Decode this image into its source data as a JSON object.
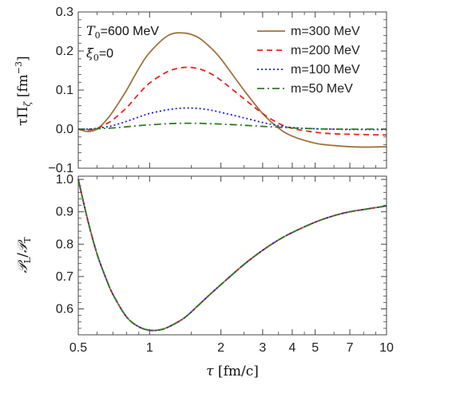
{
  "chart_data": [
    {
      "type": "line",
      "panel": "top",
      "title": "",
      "ylabel": "τΠ_ζ [fm^-3]",
      "ylabel_parts": {
        "main": "τΠ",
        "sub": "ζ",
        "unit_open": " [fm",
        "sup": "−3",
        "unit_close": "]"
      },
      "xscale": "log",
      "xlim": [
        0.5,
        10
      ],
      "ylim": [
        -0.1,
        0.3
      ],
      "yticks": [
        -0.1,
        0.0,
        0.1,
        0.2,
        0.3
      ],
      "ytick_labels": [
        "−0.1",
        "0.0",
        "0.1",
        "0.2",
        "0.3"
      ],
      "annotations": [
        {
          "main": "T",
          "sub": "0",
          "rest": "=600 MeV"
        },
        {
          "main": "ξ",
          "sub": "0",
          "rest": "=0"
        }
      ],
      "legend_position": "top-right",
      "series": [
        {
          "name": "m=300 MeV",
          "color": "#a0723e",
          "dash": "solid",
          "x": [
            0.5,
            0.55,
            0.6,
            0.65,
            0.7,
            0.8,
            0.9,
            1.0,
            1.2,
            1.4,
            1.6,
            1.8,
            2.0,
            2.5,
            3.0,
            3.5,
            4.0,
            5.0,
            6.0,
            7.0,
            8.0,
            10.0
          ],
          "y": [
            0.0,
            -0.006,
            0.0,
            0.02,
            0.045,
            0.1,
            0.155,
            0.196,
            0.24,
            0.246,
            0.235,
            0.21,
            0.18,
            0.1,
            0.04,
            0.003,
            -0.018,
            -0.036,
            -0.042,
            -0.045,
            -0.046,
            -0.045
          ]
        },
        {
          "name": "m=200 MeV",
          "color": "#e8231f",
          "dash": "7,5",
          "x": [
            0.5,
            0.55,
            0.6,
            0.65,
            0.7,
            0.8,
            0.9,
            1.0,
            1.2,
            1.4,
            1.6,
            1.8,
            2.0,
            2.5,
            3.0,
            3.5,
            4.0,
            5.0,
            6.0,
            7.0,
            8.0,
            10.0
          ],
          "y": [
            0.0,
            -0.002,
            0.002,
            0.012,
            0.024,
            0.055,
            0.09,
            0.118,
            0.148,
            0.158,
            0.155,
            0.143,
            0.125,
            0.078,
            0.04,
            0.015,
            0.002,
            -0.008,
            -0.012,
            -0.013,
            -0.014,
            -0.015
          ]
        },
        {
          "name": "m=100 MeV",
          "color": "#1a1aee",
          "dash": "2,3",
          "x": [
            0.5,
            0.55,
            0.6,
            0.65,
            0.7,
            0.8,
            0.9,
            1.0,
            1.2,
            1.4,
            1.6,
            1.8,
            2.0,
            2.5,
            3.0,
            3.5,
            4.0,
            5.0,
            6.0,
            7.0,
            8.0,
            10.0
          ],
          "y": [
            0.0,
            0.0,
            0.002,
            0.005,
            0.009,
            0.02,
            0.031,
            0.04,
            0.05,
            0.054,
            0.053,
            0.049,
            0.043,
            0.029,
            0.017,
            0.009,
            0.004,
            0.001,
            0.0,
            -0.001,
            -0.001,
            -0.001
          ]
        },
        {
          "name": "m=50 MeV",
          "color": "#2e7d1f",
          "dash": "9,4,2,4",
          "x": [
            0.5,
            0.55,
            0.6,
            0.65,
            0.7,
            0.8,
            0.9,
            1.0,
            1.2,
            1.4,
            1.6,
            1.8,
            2.0,
            2.5,
            3.0,
            3.5,
            4.0,
            5.0,
            6.0,
            7.0,
            8.0,
            10.0
          ],
          "y": [
            0.0,
            0.0,
            0.001,
            0.002,
            0.003,
            0.006,
            0.009,
            0.011,
            0.014,
            0.015,
            0.015,
            0.014,
            0.013,
            0.01,
            0.007,
            0.005,
            0.003,
            0.001,
            0.0,
            0.0,
            0.0,
            0.0
          ]
        }
      ]
    },
    {
      "type": "line",
      "panel": "bottom",
      "title": "",
      "xlabel": "τ [fm/c]",
      "ylabel": "P_L/P_T",
      "ylabel_parts": {
        "a": "𝒫",
        "a_sub": "L",
        "slash": "/",
        "b": "𝒫",
        "b_sub": "T"
      },
      "xscale": "log",
      "xlim": [
        0.5,
        10
      ],
      "xticks": [
        0.5,
        1,
        2,
        3,
        4,
        5,
        7,
        10
      ],
      "xtick_labels": [
        "0.5",
        "1",
        "2",
        "3",
        "4",
        "5",
        "7",
        "10"
      ],
      "ylim": [
        0.52,
        1.01
      ],
      "yticks": [
        0.6,
        0.7,
        0.8,
        0.9,
        1.0
      ],
      "ytick_labels": [
        "0.6",
        "0.7",
        "0.8",
        "0.9",
        "1.0"
      ],
      "series": [
        {
          "name": "m=300 MeV",
          "color": "#a0723e",
          "dash": "solid",
          "x": [
            0.5,
            0.55,
            0.6,
            0.65,
            0.7,
            0.8,
            0.9,
            1.0,
            1.1,
            1.2,
            1.4,
            1.6,
            1.8,
            2.0,
            2.5,
            3.0,
            3.5,
            4.0,
            5.0,
            6.0,
            7.0,
            8.0,
            10.0
          ],
          "y": [
            1.0,
            0.87,
            0.77,
            0.7,
            0.645,
            0.575,
            0.545,
            0.534,
            0.535,
            0.544,
            0.572,
            0.61,
            0.645,
            0.675,
            0.737,
            0.781,
            0.813,
            0.836,
            0.868,
            0.888,
            0.9,
            0.907,
            0.918
          ]
        },
        {
          "name": "m=200 MeV",
          "color": "#e8231f",
          "dash": "7,5",
          "x": [
            0.5,
            0.55,
            0.6,
            0.65,
            0.7,
            0.8,
            0.9,
            1.0,
            1.1,
            1.2,
            1.4,
            1.6,
            1.8,
            2.0,
            2.5,
            3.0,
            3.5,
            4.0,
            5.0,
            6.0,
            7.0,
            8.0,
            10.0
          ],
          "y": [
            1.0,
            0.87,
            0.77,
            0.7,
            0.645,
            0.575,
            0.545,
            0.534,
            0.535,
            0.544,
            0.572,
            0.61,
            0.645,
            0.675,
            0.737,
            0.781,
            0.813,
            0.836,
            0.868,
            0.888,
            0.9,
            0.907,
            0.918
          ]
        },
        {
          "name": "m=100 MeV",
          "color": "#1a1aee",
          "dash": "2,3",
          "x": [
            0.5,
            0.55,
            0.6,
            0.65,
            0.7,
            0.8,
            0.9,
            1.0,
            1.1,
            1.2,
            1.4,
            1.6,
            1.8,
            2.0,
            2.5,
            3.0,
            3.5,
            4.0,
            5.0,
            6.0,
            7.0,
            8.0,
            10.0
          ],
          "y": [
            1.0,
            0.87,
            0.77,
            0.7,
            0.645,
            0.575,
            0.545,
            0.534,
            0.535,
            0.544,
            0.572,
            0.61,
            0.645,
            0.675,
            0.737,
            0.781,
            0.813,
            0.836,
            0.868,
            0.888,
            0.9,
            0.907,
            0.918
          ]
        },
        {
          "name": "m=50 MeV",
          "color": "#2e7d1f",
          "dash": "9,4,2,4",
          "x": [
            0.5,
            0.55,
            0.6,
            0.65,
            0.7,
            0.8,
            0.9,
            1.0,
            1.1,
            1.2,
            1.4,
            1.6,
            1.8,
            2.0,
            2.5,
            3.0,
            3.5,
            4.0,
            5.0,
            6.0,
            7.0,
            8.0,
            10.0
          ],
          "y": [
            1.0,
            0.87,
            0.77,
            0.7,
            0.645,
            0.575,
            0.545,
            0.534,
            0.535,
            0.544,
            0.572,
            0.61,
            0.645,
            0.675,
            0.737,
            0.781,
            0.813,
            0.836,
            0.868,
            0.888,
            0.9,
            0.907,
            0.918
          ]
        }
      ]
    }
  ]
}
